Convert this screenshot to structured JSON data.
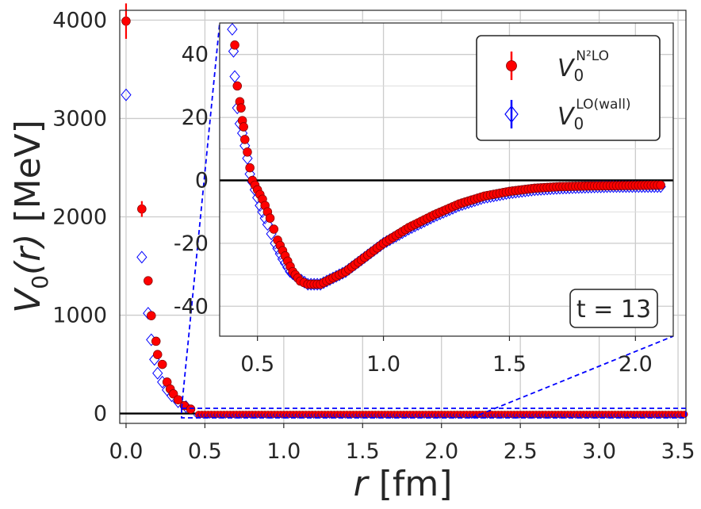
{
  "chart_data": [
    {
      "type": "scatter",
      "role": "main",
      "xlabel_italic": "r",
      "xlabel_unit": "[fm]",
      "ylabel_italic": "V",
      "ylabel_sub": "0",
      "ylabel_rest": "(r)",
      "ylabel_unit": "[MeV]",
      "xlim": [
        -0.04,
        3.55
      ],
      "ylim": [
        -100,
        4100
      ],
      "xticks": [
        "0.0",
        "0.5",
        "1.0",
        "1.5",
        "2.0",
        "2.5",
        "3.0",
        "3.5"
      ],
      "yticks": [
        "0",
        "1000",
        "2000",
        "3000",
        "4000"
      ],
      "grid": true,
      "series": [
        {
          "name": "N2LO",
          "marker": "filled-circle",
          "color": "#ff0000",
          "points": [
            [
              0.0,
              3990
            ],
            [
              0.1,
              2080
            ],
            [
              0.14,
              1350
            ],
            [
              0.16,
              995
            ],
            [
              0.19,
              735
            ],
            [
              0.2,
              600
            ],
            [
              0.23,
              500
            ],
            [
              0.26,
              320
            ],
            [
              0.28,
              250
            ],
            [
              0.3,
              200
            ],
            [
              0.33,
              140
            ],
            [
              0.37,
              80
            ],
            [
              0.41,
              45
            ]
          ]
        },
        {
          "name": "LO(wall)",
          "marker": "open-diamond",
          "color": "#0000ff",
          "points": [
            [
              0.0,
              3240
            ],
            [
              0.1,
              1590
            ],
            [
              0.14,
              1020
            ],
            [
              0.16,
              750
            ],
            [
              0.18,
              550
            ],
            [
              0.2,
              410
            ],
            [
              0.23,
              320
            ],
            [
              0.26,
              240
            ],
            [
              0.29,
              180
            ],
            [
              0.33,
              120
            ],
            [
              0.38,
              70
            ]
          ]
        }
      ]
    },
    {
      "type": "scatter",
      "role": "inset",
      "xlim": [
        0.35,
        2.15
      ],
      "ylim": [
        -49.5,
        50
      ],
      "xticks": [
        "0.5",
        "1.0",
        "1.5",
        "2.0"
      ],
      "yticks": [
        "40",
        "20",
        "0",
        "-20",
        "-40"
      ],
      "grid": true,
      "annotation": "t = 13",
      "series": [
        {
          "name": "N2LO",
          "marker": "filled-circle",
          "color": "#ff0000",
          "points": [
            [
              0.41,
              43
            ],
            [
              0.42,
              30
            ],
            [
              0.43,
              25
            ],
            [
              0.435,
              23
            ],
            [
              0.44,
              19
            ],
            [
              0.445,
              17
            ],
            [
              0.45,
              13
            ],
            [
              0.46,
              9
            ],
            [
              0.47,
              4
            ],
            [
              0.48,
              0
            ],
            [
              0.5,
              -3
            ],
            [
              0.52,
              -6
            ],
            [
              0.55,
              -12
            ],
            [
              0.58,
              -19
            ],
            [
              0.61,
              -24
            ],
            [
              0.64,
              -29
            ],
            [
              0.67,
              -32
            ],
            [
              0.7,
              -33
            ],
            [
              0.75,
              -33
            ],
            [
              0.8,
              -31
            ],
            [
              0.85,
              -29
            ],
            [
              0.9,
              -26
            ],
            [
              0.95,
              -23
            ],
            [
              1.0,
              -20
            ],
            [
              1.1,
              -15
            ],
            [
              1.2,
              -11
            ],
            [
              1.3,
              -7.5
            ],
            [
              1.4,
              -5
            ],
            [
              1.5,
              -3.5
            ],
            [
              1.6,
              -2.5
            ],
            [
              1.7,
              -2
            ],
            [
              1.8,
              -1.8
            ],
            [
              1.9,
              -1.7
            ],
            [
              2.0,
              -1.6
            ],
            [
              2.1,
              -1.5
            ]
          ]
        },
        {
          "name": "LO(wall)",
          "marker": "open-diamond",
          "color": "#0000ff",
          "points": [
            [
              0.4,
              48
            ],
            [
              0.405,
              41
            ],
            [
              0.41,
              33
            ],
            [
              0.42,
              23
            ],
            [
              0.43,
              18
            ],
            [
              0.44,
              15
            ],
            [
              0.45,
              11
            ],
            [
              0.46,
              7
            ],
            [
              0.47,
              2
            ],
            [
              0.49,
              -3
            ],
            [
              0.51,
              -8
            ],
            [
              0.54,
              -14
            ],
            [
              0.57,
              -20
            ],
            [
              0.6,
              -25
            ],
            [
              0.63,
              -29
            ],
            [
              0.66,
              -31
            ],
            [
              0.7,
              -33
            ],
            [
              0.75,
              -33
            ],
            [
              0.8,
              -31
            ],
            [
              0.85,
              -29
            ],
            [
              0.9,
              -26
            ],
            [
              0.95,
              -23
            ],
            [
              1.0,
              -20
            ],
            [
              1.1,
              -15.5
            ],
            [
              1.2,
              -11.5
            ],
            [
              1.3,
              -8
            ],
            [
              1.4,
              -5.5
            ],
            [
              1.5,
              -4
            ],
            [
              1.6,
              -3
            ],
            [
              1.7,
              -2.5
            ],
            [
              1.8,
              -2.2
            ],
            [
              1.9,
              -2
            ],
            [
              2.0,
              -2
            ],
            [
              2.1,
              -2
            ]
          ]
        }
      ],
      "legend": {
        "placement": "top-right",
        "entries": [
          {
            "base": "V",
            "sub": "0",
            "sup": "N²LO",
            "color": "#ff0000",
            "marker": "filled-circle"
          },
          {
            "base": "V",
            "sub": "0",
            "sup": "LO(wall)",
            "color": "#0000ff",
            "marker": "open-diamond"
          }
        ]
      }
    }
  ]
}
